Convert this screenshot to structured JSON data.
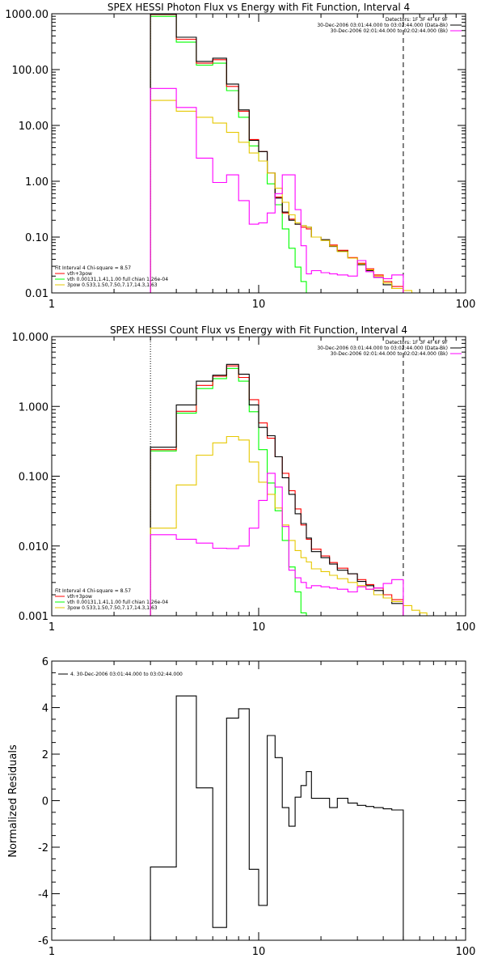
{
  "chart_data": [
    {
      "type": "line",
      "title": "SPEX HESSI Photon Flux vs Energy with Fit Function, Interval 4",
      "xscale": "log",
      "yscale": "log",
      "xlim": [
        1,
        100
      ],
      "ylim": [
        0.01,
        1000
      ],
      "xticks": [
        {
          "v": 1,
          "label": "1"
        },
        {
          "v": 10,
          "label": "10"
        },
        {
          "v": 100,
          "label": "100"
        }
      ],
      "yticks": [
        {
          "v": 1000,
          "label": "1000.00"
        },
        {
          "v": 100,
          "label": "100.00"
        },
        {
          "v": 10,
          "label": "10.00"
        },
        {
          "v": 1,
          "label": "1.00"
        },
        {
          "v": 0.1,
          "label": "0.10"
        },
        {
          "v": 0.01,
          "label": "0.01"
        }
      ],
      "vlines": [
        {
          "x": 3,
          "style": "dotted"
        },
        {
          "x": 50,
          "style": "dashed"
        }
      ],
      "legend_top": {
        "placement": "top-right",
        "lines": [
          {
            "text": "Detectors: 1F 3F 4F 6F 9F",
            "color": ""
          },
          {
            "text": "30-Dec-2006 03:01:44.000 to 03:02:44.000 (Data-Bk)",
            "color": "#000000"
          },
          {
            "text": "30-Dec-2006 02:01:44.000 to 02:02:44.000 (Bk)",
            "color": "#ff00ff"
          }
        ]
      },
      "legend_bottom": {
        "placement": "bottom-left",
        "lines": [
          {
            "text": "Fit Interval 4    Chi-square = 8.57",
            "color": ""
          },
          {
            "text": "vth+3pow",
            "color": "#ff0000"
          },
          {
            "text": "vth 0.00131,1.41,1.00  full chian 1.26e-04",
            "color": "#00ff00"
          },
          {
            "text": "3pow 0.533,1.50,7.50,7.17,14.3,1.63",
            "color": "#e6c800"
          }
        ]
      },
      "series": [
        {
          "color": "#00ff00",
          "edges": [
            3,
            4,
            5,
            6,
            7,
            8,
            9,
            10,
            11,
            12,
            13,
            14,
            15,
            16,
            17
          ],
          "values": [
            900,
            310,
            120,
            130,
            42,
            14,
            4.3,
            2.3,
            0.9,
            0.38,
            0.14,
            0.063,
            0.029,
            0.016
          ]
        },
        {
          "color": "#ff0000",
          "edges": [
            3,
            4,
            5,
            6,
            7,
            8,
            9,
            10,
            11,
            12,
            13,
            14,
            15,
            16,
            17,
            18,
            20,
            22,
            24,
            27,
            30,
            33,
            36,
            40,
            44,
            50
          ],
          "values": [
            970,
            350,
            130,
            150,
            50,
            18,
            5.6,
            3.4,
            1.4,
            0.52,
            0.27,
            0.21,
            0.17,
            0.15,
            0.14,
            0.1,
            0.088,
            0.072,
            0.058,
            0.043,
            0.034,
            0.027,
            0.021,
            0.016,
            0.013
          ]
        },
        {
          "color": "#000000",
          "edges": [
            3,
            4,
            5,
            6,
            7,
            8,
            9,
            10,
            11,
            12,
            13,
            14,
            15,
            16,
            17,
            18,
            20,
            22,
            24,
            27,
            30,
            33,
            36,
            40,
            44,
            50
          ],
          "values": [
            980,
            380,
            140,
            160,
            55,
            19,
            5.4,
            3.4,
            1.4,
            0.5,
            0.28,
            0.2,
            0.17,
            0.16,
            0.15,
            0.1,
            0.09,
            0.068,
            0.056,
            0.042,
            0.032,
            0.025,
            0.019,
            0.014,
            0.012
          ]
        },
        {
          "color": "#e6c800",
          "edges": [
            3,
            4,
            5,
            6,
            7,
            8,
            9,
            10,
            11,
            12,
            13,
            14,
            15,
            16,
            17,
            18,
            20,
            22,
            24,
            27,
            30,
            33,
            36,
            40,
            44,
            50,
            55
          ],
          "values": [
            28,
            18,
            14,
            11,
            7.5,
            5,
            3.2,
            2.3,
            1.4,
            0.75,
            0.42,
            0.25,
            0.18,
            0.16,
            0.15,
            0.1,
            0.087,
            0.069,
            0.055,
            0.042,
            0.033,
            0.026,
            0.02,
            0.015,
            0.012,
            0.011
          ]
        },
        {
          "color": "#ff00ff",
          "edges": [
            3,
            4,
            5,
            6,
            7,
            8,
            9,
            10,
            11,
            12,
            13,
            14,
            15,
            16,
            17,
            18,
            20,
            22,
            24,
            27,
            30,
            33,
            36,
            40,
            44,
            50
          ],
          "values": [
            46,
            21,
            2.6,
            0.95,
            1.3,
            0.45,
            0.17,
            0.18,
            0.27,
            0.6,
            1.3,
            1.3,
            0.31,
            0.07,
            0.022,
            0.025,
            0.023,
            0.022,
            0.021,
            0.02,
            0.038,
            0.024,
            0.019,
            0.018,
            0.021
          ]
        }
      ]
    },
    {
      "type": "line",
      "title": "SPEX HESSI Count Flux vs Energy with Fit Function, Interval 4",
      "xscale": "log",
      "yscale": "log",
      "xlim": [
        1,
        100
      ],
      "ylim": [
        0.001,
        10
      ],
      "xticks": [
        {
          "v": 1,
          "label": "1"
        },
        {
          "v": 10,
          "label": "10"
        },
        {
          "v": 100,
          "label": "100"
        }
      ],
      "yticks": [
        {
          "v": 10,
          "label": "10.000"
        },
        {
          "v": 1,
          "label": "1.000"
        },
        {
          "v": 0.1,
          "label": "0.100"
        },
        {
          "v": 0.01,
          "label": "0.010"
        },
        {
          "v": 0.001,
          "label": "0.001"
        }
      ],
      "vlines": [
        {
          "x": 3,
          "style": "dotted"
        },
        {
          "x": 50,
          "style": "dashed"
        }
      ],
      "legend_top": {
        "placement": "top-right",
        "lines": [
          {
            "text": "Detectors: 1F 3F 4F 6F 9F",
            "color": ""
          },
          {
            "text": "30-Dec-2006 03:01:44.000 to 03:02:44.000 (Data-Bk)",
            "color": "#000000"
          },
          {
            "text": "30-Dec-2006 02:01:44.000 to 02:02:44.000 (Bk)",
            "color": "#ff00ff"
          }
        ]
      },
      "legend_bottom": {
        "placement": "bottom-left",
        "lines": [
          {
            "text": "Fit Interval 4    Chi-square = 8.57",
            "color": ""
          },
          {
            "text": "vth+3pow",
            "color": "#ff0000"
          },
          {
            "text": "vth 0.00131,1.41,1.00  full chian 1.26e-04",
            "color": "#00ff00"
          },
          {
            "text": "3pow 0.533,1.50,7.50,7.17,14.3,1.63",
            "color": "#e6c800"
          }
        ]
      },
      "series": [
        {
          "color": "#00ff00",
          "edges": [
            3,
            4,
            5,
            6,
            7,
            8,
            9,
            10,
            11,
            12,
            13,
            14,
            15,
            16,
            17
          ],
          "values": [
            0.23,
            0.8,
            1.8,
            2.5,
            3.5,
            2.3,
            0.84,
            0.24,
            0.08,
            0.032,
            0.012,
            0.005,
            0.0022,
            0.0011
          ]
        },
        {
          "color": "#ff0000",
          "edges": [
            3,
            4,
            5,
            6,
            7,
            8,
            9,
            10,
            11,
            12,
            13,
            14,
            15,
            16,
            17,
            18,
            20,
            22,
            24,
            27,
            30,
            33,
            36,
            40,
            44,
            50
          ],
          "values": [
            0.24,
            0.85,
            2,
            2.7,
            3.8,
            2.6,
            1.25,
            0.58,
            0.35,
            0.19,
            0.11,
            0.062,
            0.034,
            0.02,
            0.0125,
            0.009,
            0.0072,
            0.0058,
            0.0048,
            0.004,
            0.0033,
            0.0028,
            0.0025,
            0.002,
            0.0017
          ]
        },
        {
          "color": "#000000",
          "edges": [
            3,
            4,
            5,
            6,
            7,
            8,
            9,
            10,
            11,
            12,
            13,
            14,
            15,
            16,
            17,
            18,
            20,
            22,
            24,
            27,
            30,
            33,
            36,
            40,
            44,
            50
          ],
          "values": [
            0.26,
            1.05,
            2.3,
            2.8,
            4,
            2.9,
            1.05,
            0.5,
            0.38,
            0.19,
            0.095,
            0.055,
            0.029,
            0.021,
            0.013,
            0.0083,
            0.0068,
            0.0055,
            0.0045,
            0.004,
            0.0031,
            0.0027,
            0.0023,
            0.0018,
            0.0015
          ]
        },
        {
          "color": "#e6c800",
          "edges": [
            3,
            4,
            5,
            6,
            7,
            8,
            9,
            10,
            11,
            12,
            13,
            14,
            15,
            16,
            17,
            18,
            20,
            22,
            24,
            27,
            30,
            33,
            36,
            40,
            44,
            50,
            55,
            60,
            65,
            70,
            75,
            80
          ],
          "values": [
            0.018,
            0.075,
            0.2,
            0.3,
            0.37,
            0.33,
            0.16,
            0.082,
            0.055,
            0.035,
            0.02,
            0.012,
            0.0086,
            0.0068,
            0.0059,
            0.0047,
            0.0043,
            0.0038,
            0.0034,
            0.003,
            0.0027,
            0.0024,
            0.002,
            0.0018,
            0.0016,
            0.0014,
            0.0012,
            0.0011,
            0.001,
            0.001,
            0.001
          ]
        },
        {
          "color": "#ff00ff",
          "edges": [
            3,
            4,
            5,
            6,
            7,
            8,
            9,
            10,
            11,
            12,
            13,
            14,
            15,
            16,
            17,
            18,
            20,
            22,
            24,
            27,
            30,
            33,
            36,
            40,
            44,
            50
          ],
          "values": [
            0.0145,
            0.0125,
            0.011,
            0.0093,
            0.0092,
            0.01,
            0.018,
            0.045,
            0.11,
            0.07,
            0.019,
            0.0045,
            0.0035,
            0.003,
            0.0025,
            0.0027,
            0.0026,
            0.0025,
            0.0024,
            0.0022,
            0.0026,
            0.0024,
            0.0025,
            0.0029,
            0.0033
          ]
        }
      ]
    },
    {
      "type": "line",
      "title": "",
      "ylabel": "Normalized Residuals",
      "xscale": "log",
      "yscale": "linear",
      "xlim": [
        1,
        100
      ],
      "ylim": [
        -6,
        6
      ],
      "xticks": [
        {
          "v": 1,
          "label": "1"
        },
        {
          "v": 10,
          "label": "10"
        },
        {
          "v": 100,
          "label": "100"
        }
      ],
      "yticks": [
        {
          "v": 6,
          "label": "6"
        },
        {
          "v": 4,
          "label": "4"
        },
        {
          "v": 2,
          "label": "2"
        },
        {
          "v": 0,
          "label": "0"
        },
        {
          "v": -2,
          "label": "-2"
        },
        {
          "v": -4,
          "label": "-4"
        },
        {
          "v": -6,
          "label": "-6"
        }
      ],
      "vlines": [],
      "legend_top": {
        "placement": "top-left",
        "lines": [
          {
            "text": "4. 30-Dec-2006 03:01:44.000 to 03:02:44.000",
            "color": "#000000"
          }
        ]
      },
      "legend_bottom": {
        "placement": "",
        "lines": []
      },
      "series": [
        {
          "color": "#000000",
          "edges": [
            3,
            4,
            5,
            6,
            7,
            8,
            9,
            10,
            11,
            12,
            13,
            14,
            15,
            16,
            17,
            18,
            20,
            22,
            24,
            27,
            30,
            33,
            36,
            40,
            44,
            50
          ],
          "values": [
            -2.85,
            4.5,
            0.55,
            -5.45,
            3.55,
            3.95,
            -2.95,
            -4.5,
            2.8,
            1.85,
            -0.3,
            -1.1,
            0.15,
            0.65,
            1.25,
            0.1,
            0.1,
            -0.3,
            0.1,
            -0.1,
            -0.2,
            -0.25,
            -0.3,
            -0.35,
            -0.4
          ]
        }
      ]
    }
  ]
}
